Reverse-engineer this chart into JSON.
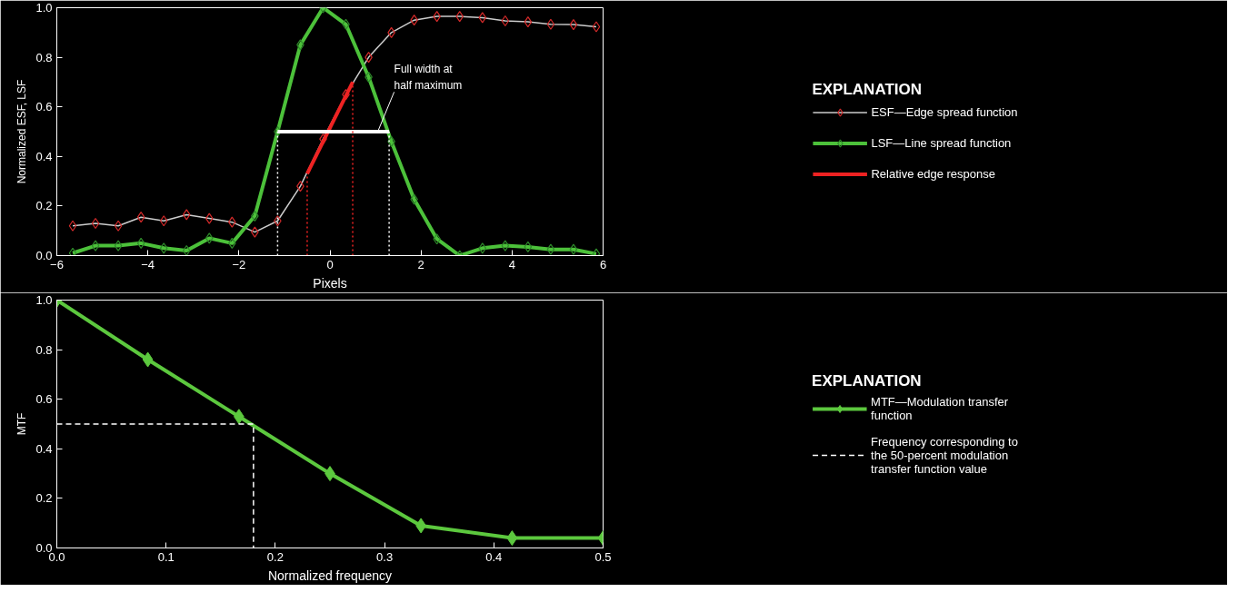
{
  "chart_data": [
    {
      "type": "line",
      "xlabel": "Pixels",
      "ylabel": "Normalized ESF, LSF",
      "legend_title": "EXPLANATION",
      "legend": "right",
      "marker": "diamond",
      "grid": false,
      "x": [
        -5.65,
        -5.15,
        -4.65,
        -4.15,
        -3.65,
        -3.15,
        -2.65,
        -2.15,
        -1.65,
        -1.15,
        -0.65,
        -0.15,
        0.35,
        0.85,
        1.35,
        1.85,
        2.35,
        2.85,
        3.35,
        3.85,
        4.35,
        4.85,
        5.35,
        5.85
      ],
      "xlim": [
        -6,
        6
      ],
      "xticks": [
        -6,
        -4,
        -2,
        0,
        2,
        4,
        6
      ],
      "ylim": [
        0,
        1.0
      ],
      "yticks": [
        {
          "value": 0,
          "label": "0.0"
        },
        {
          "value": 0.2,
          "label": "0.2"
        },
        {
          "value": 0.4,
          "label": "0.4"
        },
        {
          "value": 0.6,
          "label": "0.6"
        },
        {
          "value": 0.8,
          "label": "0.8"
        },
        {
          "value": 1.0,
          "label": "1.0"
        }
      ],
      "series": [
        {
          "name": "ESF—Edge spread function",
          "color": "#d42a2a",
          "values": [
            0.12,
            0.13,
            0.12,
            0.155,
            0.14,
            0.165,
            0.15,
            0.135,
            0.095,
            0.14,
            0.28,
            0.47,
            0.65,
            0.8,
            0.9,
            0.95,
            0.965,
            0.965,
            0.96,
            0.947,
            0.943,
            0.933,
            0.932,
            0.923
          ]
        },
        {
          "name": "LSF—Line spread function",
          "color": "#4cc13a",
          "values": [
            0.01,
            0.04,
            0.04,
            0.05,
            0.03,
            0.02,
            0.07,
            0.05,
            0.16,
            0.5,
            0.85,
            1.0,
            0.933,
            0.72,
            0.46,
            0.227,
            0.067,
            0.0,
            0.03,
            0.04,
            0.035,
            0.025,
            0.025,
            0.007
          ]
        },
        {
          "name": "Relative edge response",
          "color": "#ee2222",
          "marker": "none",
          "x": [
            -0.5,
            0.5
          ],
          "values": [
            0.33,
            0.7
          ]
        },
        {
          "color": "#ffffff",
          "marker": "none",
          "x": [
            -1.15,
            1.3
          ],
          "values": [
            0.5,
            0.5
          ]
        },
        {
          "color": "#ffffff",
          "marker": "none",
          "line_style": "dotted",
          "x": [
            -1.15,
            -1.15
          ],
          "values": [
            0,
            0.5
          ]
        },
        {
          "color": "#ffffff",
          "marker": "none",
          "line_style": "dotted",
          "x": [
            1.3,
            1.3
          ],
          "values": [
            0,
            0.5
          ]
        },
        {
          "color": "#ee2222",
          "marker": "none",
          "line_style": "dotted",
          "x": [
            -0.5,
            -0.5
          ],
          "values": [
            0,
            0.33
          ]
        },
        {
          "color": "#ee2222",
          "marker": "none",
          "line_style": "dotted",
          "x": [
            0.5,
            0.5
          ],
          "values": [
            0,
            0.7
          ]
        }
      ],
      "annotations": [
        {
          "text": "Full width at half maximum",
          "x": 1.05,
          "y": 0.5
        }
      ]
    },
    {
      "type": "line",
      "xlabel": "Normalized frequency",
      "ylabel": "MTF",
      "legend_title": "EXPLANATION",
      "legend": "right",
      "grid": false,
      "x": [
        0,
        0.0833,
        0.1667,
        0.25,
        0.3333,
        0.4167,
        0.5
      ],
      "xlim": [
        0,
        0.5
      ],
      "ylim": [
        0,
        1.0
      ],
      "xticks": [
        {
          "value": 0,
          "label": "0.0"
        },
        0.1,
        0.2,
        0.3,
        0.4,
        0.5
      ],
      "yticks": [
        {
          "value": 0,
          "label": "0.0"
        },
        {
          "value": 0.2,
          "label": "0.2"
        },
        {
          "value": 0.4,
          "label": "0.4"
        },
        {
          "value": 0.6,
          "label": "0.6"
        },
        {
          "value": 0.8,
          "label": "0.8"
        },
        {
          "value": 1.0,
          "label": "1.0"
        }
      ],
      "series": [
        {
          "name": "MTF—Modulation transfer function",
          "color": "#5cc83e",
          "marker": "diamond",
          "values": [
            1.0,
            0.76,
            0.53,
            0.3,
            0.09,
            0.04,
            0.04
          ]
        },
        {
          "name": "Frequency corresponding to the 50-percent modulation transfer function value",
          "color": "#ffffff",
          "line_style": "dashed",
          "x": [
            0,
            0.18,
            0.18
          ],
          "values": [
            0.5,
            0.5,
            0
          ]
        }
      ]
    }
  ]
}
